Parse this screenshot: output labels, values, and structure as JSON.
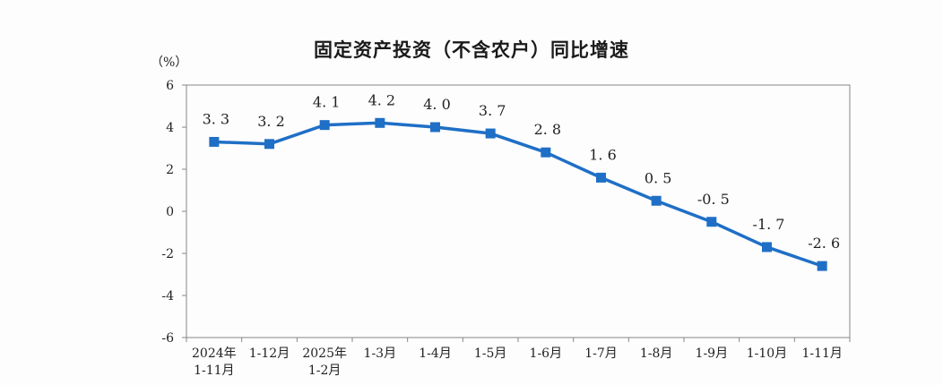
{
  "chart_data": {
    "type": "line",
    "title": "固定资产投资（不含农户）同比增速",
    "ylabel": "（%）",
    "xlabel": "",
    "ylim": [
      -6,
      6
    ],
    "yticks": [
      "6",
      "4",
      "2",
      "0",
      "-2",
      "-4",
      "-6"
    ],
    "categories": [
      [
        "2024年",
        "1-11月"
      ],
      [
        "1-12月"
      ],
      [
        "2025年",
        "1-2月"
      ],
      [
        "1-3月"
      ],
      [
        "1-4月"
      ],
      [
        "1-5月"
      ],
      [
        "1-6月"
      ],
      [
        "1-7月"
      ],
      [
        "1-8月"
      ],
      [
        "1-9月"
      ],
      [
        "1-10月"
      ],
      [
        "1-11月"
      ]
    ],
    "values": [
      3.3,
      3.2,
      4.1,
      4.2,
      4.0,
      3.7,
      2.8,
      1.6,
      0.5,
      -0.5,
      -1.7,
      -2.6
    ],
    "data_labels": [
      "3. 3",
      "3. 2",
      "4. 1",
      "4. 2",
      "4. 0",
      "3. 7",
      "2. 8",
      "1. 6",
      "0. 5",
      "-0. 5",
      "-1. 7",
      "-2. 6"
    ],
    "grid": false,
    "colors": {
      "line": "#1f6fc6",
      "axis": "#888888",
      "text": "#222222"
    }
  }
}
